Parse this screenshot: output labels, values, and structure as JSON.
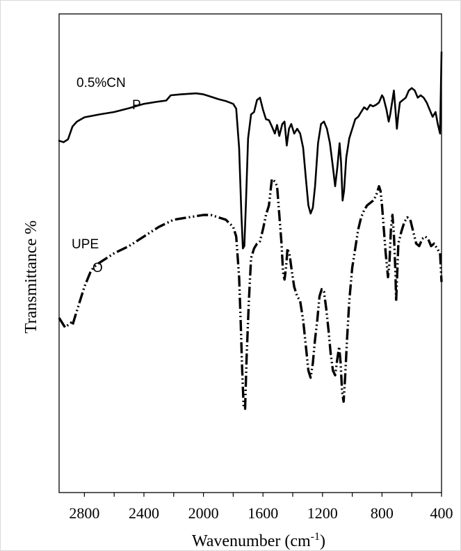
{
  "chart_data": {
    "type": "line",
    "title": "",
    "xlabel": "Wavenumber (cm-1)",
    "xlabel_parts": {
      "main": "Wavenumber (cm",
      "sup": "-1",
      "close": ")"
    },
    "ylabel": "Transmittance %",
    "x_reversed": true,
    "xlim": [
      2970,
      400
    ],
    "ylim": [
      0,
      100
    ],
    "y_ticks_shown": false,
    "grid": false,
    "x_ticks": [
      2800,
      2400,
      2000,
      1600,
      1200,
      800,
      400
    ],
    "x_tick_labels": [
      "2800",
      "2400",
      "2000",
      "1600",
      "1200",
      "800",
      "400"
    ],
    "series": [
      {
        "name": "0.5%CN P",
        "label_line1": "0.5%CN",
        "label_line2": "P",
        "style": "solid",
        "color": "#000000",
        "points": [
          [
            2970,
            73.5
          ],
          [
            2940,
            73.2
          ],
          [
            2910,
            73.8
          ],
          [
            2880,
            76.5
          ],
          [
            2850,
            77.5
          ],
          [
            2800,
            78.4
          ],
          [
            2700,
            79.0
          ],
          [
            2600,
            79.5
          ],
          [
            2500,
            80.3
          ],
          [
            2400,
            81.2
          ],
          [
            2300,
            81.7
          ],
          [
            2250,
            81.9
          ],
          [
            2220,
            83.0
          ],
          [
            2150,
            83.2
          ],
          [
            2050,
            83.4
          ],
          [
            2000,
            83.2
          ],
          [
            1950,
            82.7
          ],
          [
            1900,
            82.2
          ],
          [
            1850,
            81.8
          ],
          [
            1800,
            81.2
          ],
          [
            1780,
            80.2
          ],
          [
            1760,
            72.0
          ],
          [
            1745,
            58.0
          ],
          [
            1735,
            51.0
          ],
          [
            1725,
            51.5
          ],
          [
            1715,
            60.0
          ],
          [
            1700,
            74.0
          ],
          [
            1680,
            79.0
          ],
          [
            1660,
            79.5
          ],
          [
            1640,
            82.0
          ],
          [
            1620,
            82.5
          ],
          [
            1600,
            80.0
          ],
          [
            1580,
            78.0
          ],
          [
            1560,
            77.8
          ],
          [
            1540,
            76.5
          ],
          [
            1520,
            75.0
          ],
          [
            1505,
            76.8
          ],
          [
            1490,
            74.5
          ],
          [
            1470,
            77.0
          ],
          [
            1455,
            77.5
          ],
          [
            1440,
            72.5
          ],
          [
            1425,
            76.0
          ],
          [
            1410,
            77.0
          ],
          [
            1390,
            75.0
          ],
          [
            1370,
            76.0
          ],
          [
            1350,
            75.0
          ],
          [
            1330,
            72.0
          ],
          [
            1310,
            65.0
          ],
          [
            1295,
            60.0
          ],
          [
            1280,
            58.3
          ],
          [
            1265,
            59.5
          ],
          [
            1250,
            64.0
          ],
          [
            1230,
            73.0
          ],
          [
            1210,
            77.0
          ],
          [
            1190,
            77.5
          ],
          [
            1170,
            76.0
          ],
          [
            1150,
            73.0
          ],
          [
            1130,
            68.0
          ],
          [
            1115,
            64.0
          ],
          [
            1100,
            68.0
          ],
          [
            1085,
            73.0
          ],
          [
            1075,
            69.0
          ],
          [
            1065,
            61.0
          ],
          [
            1055,
            63.0
          ],
          [
            1040,
            70.0
          ],
          [
            1020,
            74.0
          ],
          [
            1000,
            76.0
          ],
          [
            980,
            78.0
          ],
          [
            960,
            78.5
          ],
          [
            940,
            79.5
          ],
          [
            920,
            80.5
          ],
          [
            900,
            80.0
          ],
          [
            880,
            81.0
          ],
          [
            860,
            80.7
          ],
          [
            840,
            81.0
          ],
          [
            820,
            81.5
          ],
          [
            800,
            83.0
          ],
          [
            790,
            82.5
          ],
          [
            770,
            80.0
          ],
          [
            755,
            77.5
          ],
          [
            745,
            79.0
          ],
          [
            730,
            82.0
          ],
          [
            720,
            84.0
          ],
          [
            710,
            80.0
          ],
          [
            700,
            76.0
          ],
          [
            690,
            79.0
          ],
          [
            680,
            81.5
          ],
          [
            660,
            82.0
          ],
          [
            640,
            82.5
          ],
          [
            620,
            84.0
          ],
          [
            600,
            84.5
          ],
          [
            580,
            84.0
          ],
          [
            560,
            82.5
          ],
          [
            540,
            83.0
          ],
          [
            520,
            82.5
          ],
          [
            500,
            81.5
          ],
          [
            480,
            80.0
          ],
          [
            460,
            78.5
          ],
          [
            440,
            79.5
          ],
          [
            425,
            77.0
          ],
          [
            410,
            75.0
          ],
          [
            400,
            92.0
          ]
        ]
      },
      {
        "name": "UPE O",
        "label_line1": "UPE",
        "label_line2": "O",
        "style": "dash-dot",
        "color": "#000000",
        "points": [
          [
            2970,
            36.5
          ],
          [
            2950,
            35.5
          ],
          [
            2930,
            34.5
          ],
          [
            2910,
            35.0
          ],
          [
            2890,
            35.5
          ],
          [
            2880,
            35.0
          ],
          [
            2860,
            37.0
          ],
          [
            2840,
            39.0
          ],
          [
            2820,
            41.0
          ],
          [
            2800,
            43.0
          ],
          [
            2780,
            44.5
          ],
          [
            2760,
            46.0
          ],
          [
            2740,
            47.0
          ],
          [
            2700,
            48.0
          ],
          [
            2650,
            49.0
          ],
          [
            2600,
            50.0
          ],
          [
            2500,
            51.5
          ],
          [
            2400,
            53.5
          ],
          [
            2300,
            55.5
          ],
          [
            2200,
            57.0
          ],
          [
            2100,
            57.5
          ],
          [
            2000,
            58.0
          ],
          [
            1950,
            58.0
          ],
          [
            1900,
            57.5
          ],
          [
            1850,
            57.0
          ],
          [
            1800,
            55.5
          ],
          [
            1780,
            53.5
          ],
          [
            1760,
            45.0
          ],
          [
            1750,
            36.0
          ],
          [
            1740,
            26.0
          ],
          [
            1730,
            18.0
          ],
          [
            1720,
            17.5
          ],
          [
            1710,
            28.0
          ],
          [
            1695,
            40.0
          ],
          [
            1680,
            49.0
          ],
          [
            1660,
            51.0
          ],
          [
            1640,
            52.0
          ],
          [
            1620,
            52.5
          ],
          [
            1600,
            55.0
          ],
          [
            1580,
            58.0
          ],
          [
            1560,
            60.0
          ],
          [
            1540,
            65.5
          ],
          [
            1520,
            65.0
          ],
          [
            1505,
            64.0
          ],
          [
            1490,
            58.0
          ],
          [
            1475,
            52.0
          ],
          [
            1465,
            46.0
          ],
          [
            1455,
            44.5
          ],
          [
            1445,
            47.0
          ],
          [
            1435,
            51.0
          ],
          [
            1420,
            49.5
          ],
          [
            1405,
            46.0
          ],
          [
            1390,
            43.0
          ],
          [
            1370,
            41.0
          ],
          [
            1350,
            40.0
          ],
          [
            1330,
            36.0
          ],
          [
            1310,
            30.0
          ],
          [
            1295,
            25.5
          ],
          [
            1280,
            24.0
          ],
          [
            1265,
            27.0
          ],
          [
            1250,
            32.0
          ],
          [
            1235,
            36.0
          ],
          [
            1220,
            41.0
          ],
          [
            1205,
            42.5
          ],
          [
            1190,
            42.0
          ],
          [
            1175,
            38.5
          ],
          [
            1160,
            34.0
          ],
          [
            1145,
            29.0
          ],
          [
            1130,
            25.5
          ],
          [
            1115,
            24.5
          ],
          [
            1100,
            28.0
          ],
          [
            1088,
            30.5
          ],
          [
            1078,
            27.0
          ],
          [
            1068,
            21.0
          ],
          [
            1058,
            19.0
          ],
          [
            1048,
            24.0
          ],
          [
            1035,
            32.0
          ],
          [
            1020,
            40.0
          ],
          [
            1000,
            47.0
          ],
          [
            980,
            51.0
          ],
          [
            960,
            55.0
          ],
          [
            940,
            57.5
          ],
          [
            920,
            59.0
          ],
          [
            900,
            60.0
          ],
          [
            880,
            60.5
          ],
          [
            860,
            61.0
          ],
          [
            840,
            62.0
          ],
          [
            820,
            64.0
          ],
          [
            810,
            63.0
          ],
          [
            800,
            60.0
          ],
          [
            790,
            56.0
          ],
          [
            775,
            50.0
          ],
          [
            760,
            45.0
          ],
          [
            750,
            48.0
          ],
          [
            740,
            55.0
          ],
          [
            730,
            58.0
          ],
          [
            720,
            54.0
          ],
          [
            710,
            46.0
          ],
          [
            705,
            40.0
          ],
          [
            700,
            44.0
          ],
          [
            690,
            52.0
          ],
          [
            670,
            54.5
          ],
          [
            650,
            56.5
          ],
          [
            630,
            57.5
          ],
          [
            610,
            57.0
          ],
          [
            590,
            54.5
          ],
          [
            570,
            52.0
          ],
          [
            550,
            51.5
          ],
          [
            530,
            53.0
          ],
          [
            510,
            53.5
          ],
          [
            490,
            53.0
          ],
          [
            470,
            51.5
          ],
          [
            450,
            52.0
          ],
          [
            430,
            51.0
          ],
          [
            410,
            50.0
          ],
          [
            400,
            44.0
          ]
        ]
      }
    ]
  }
}
